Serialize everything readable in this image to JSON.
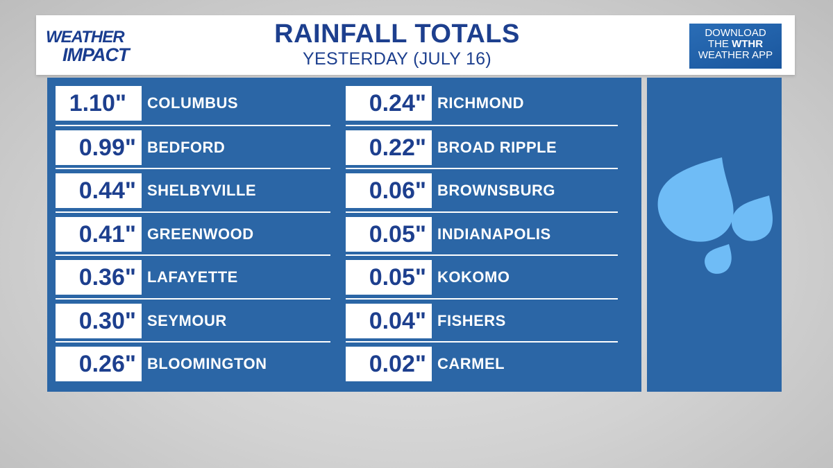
{
  "header": {
    "logo_line1": "WEATHER",
    "logo_line2": "IMPACT",
    "title": "RAINFALL TOTALS",
    "subtitle": "YESTERDAY (JULY 16)",
    "app_line1": "DOWNLOAD",
    "app_line2_pre": "THE ",
    "app_line2_bold": "WTHR",
    "app_line3": "WEATHER APP"
  },
  "left_column": [
    {
      "amount": "1.10\"",
      "city": "COLUMBUS"
    },
    {
      "amount": "0.99\"",
      "city": "BEDFORD"
    },
    {
      "amount": "0.44\"",
      "city": "SHELBYVILLE"
    },
    {
      "amount": "0.41\"",
      "city": "GREENWOOD"
    },
    {
      "amount": "0.36\"",
      "city": "LAFAYETTE"
    },
    {
      "amount": "0.30\"",
      "city": "SEYMOUR"
    },
    {
      "amount": "0.26\"",
      "city": "BLOOMINGTON"
    }
  ],
  "right_column": [
    {
      "amount": "0.24\"",
      "city": "RICHMOND"
    },
    {
      "amount": "0.22\"",
      "city": "BROAD RIPPLE"
    },
    {
      "amount": "0.06\"",
      "city": "BROWNSBURG"
    },
    {
      "amount": "0.05\"",
      "city": "INDIANAPOLIS"
    },
    {
      "amount": "0.05\"",
      "city": "KOKOMO"
    },
    {
      "amount": "0.04\"",
      "city": "FISHERS"
    },
    {
      "amount": "0.02\"",
      "city": "CARMEL"
    }
  ],
  "colors": {
    "brand_blue": "#1d3f8e",
    "panel_blue": "#2b66a6",
    "drop_blue": "#6fbcf6"
  },
  "icons": [
    "lightning-bolt-icon",
    "raindrops-icon"
  ]
}
